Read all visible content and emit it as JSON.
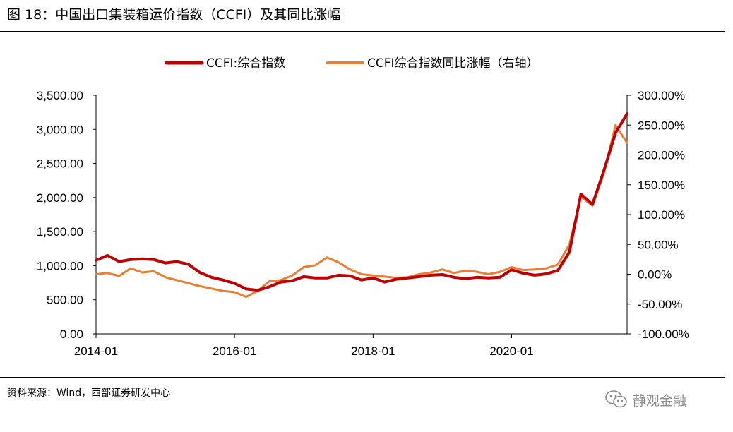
{
  "figure_title": "图 18：中国出口集装箱运价指数（CCFI）及其同比涨幅",
  "source_text": "资料来源：Wind，西部证券研发中心",
  "watermark_text": "静观金融",
  "watermark_icon": "wechat-icon",
  "colors": {
    "index": "#C00000",
    "yoy": "#ED7D31",
    "axis": "#000000",
    "watermark": "#8a8a8a"
  },
  "chart_data": {
    "type": "line",
    "legend_position": "top",
    "grid": false,
    "x_ticks": [
      "2014-01",
      "2016-01",
      "2018-01",
      "2020-01"
    ],
    "x_range": [
      "2014-01",
      "2021-09"
    ],
    "y_left": {
      "ylim": [
        0,
        3500
      ],
      "ticks": [
        "0.00",
        "500.00",
        "1,000.00",
        "1,500.00",
        "2,000.00",
        "2,500.00",
        "3,000.00",
        "3,500.00"
      ]
    },
    "y_right": {
      "ylim": [
        -100,
        300
      ],
      "ticks": [
        "-100.00%",
        "-50.00%",
        "0.00%",
        "50.00%",
        "100.00%",
        "150.00%",
        "200.00%",
        "250.00%",
        "300.00%"
      ]
    },
    "series": [
      {
        "name": "CCFI:综合指数",
        "axis": "left",
        "points": [
          [
            "2014-01",
            1080
          ],
          [
            "2014-03",
            1150
          ],
          [
            "2014-05",
            1060
          ],
          [
            "2014-07",
            1090
          ],
          [
            "2014-09",
            1100
          ],
          [
            "2014-11",
            1090
          ],
          [
            "2015-01",
            1040
          ],
          [
            "2015-03",
            1060
          ],
          [
            "2015-05",
            1020
          ],
          [
            "2015-07",
            900
          ],
          [
            "2015-09",
            830
          ],
          [
            "2015-11",
            790
          ],
          [
            "2016-01",
            740
          ],
          [
            "2016-03",
            660
          ],
          [
            "2016-05",
            640
          ],
          [
            "2016-07",
            690
          ],
          [
            "2016-09",
            760
          ],
          [
            "2016-11",
            780
          ],
          [
            "2017-01",
            840
          ],
          [
            "2017-03",
            820
          ],
          [
            "2017-05",
            820
          ],
          [
            "2017-07",
            860
          ],
          [
            "2017-09",
            850
          ],
          [
            "2017-11",
            790
          ],
          [
            "2018-01",
            820
          ],
          [
            "2018-03",
            760
          ],
          [
            "2018-05",
            800
          ],
          [
            "2018-07",
            820
          ],
          [
            "2018-09",
            840
          ],
          [
            "2018-11",
            860
          ],
          [
            "2019-01",
            870
          ],
          [
            "2019-03",
            830
          ],
          [
            "2019-05",
            810
          ],
          [
            "2019-07",
            830
          ],
          [
            "2019-09",
            820
          ],
          [
            "2019-11",
            830
          ],
          [
            "2020-01",
            940
          ],
          [
            "2020-03",
            890
          ],
          [
            "2020-05",
            860
          ],
          [
            "2020-07",
            880
          ],
          [
            "2020-09",
            930
          ],
          [
            "2020-11",
            1200
          ],
          [
            "2021-01",
            2050
          ],
          [
            "2021-03",
            1900
          ],
          [
            "2021-05",
            2400
          ],
          [
            "2021-07",
            2950
          ],
          [
            "2021-09",
            3230
          ]
        ]
      },
      {
        "name": "CCFI综合指数同比涨幅（右轴）",
        "axis": "right",
        "points": [
          [
            "2014-01",
            0
          ],
          [
            "2014-03",
            2
          ],
          [
            "2014-05",
            -3
          ],
          [
            "2014-07",
            10
          ],
          [
            "2014-09",
            3
          ],
          [
            "2014-11",
            5
          ],
          [
            "2015-01",
            -5
          ],
          [
            "2015-03",
            -10
          ],
          [
            "2015-05",
            -15
          ],
          [
            "2015-07",
            -20
          ],
          [
            "2015-09",
            -24
          ],
          [
            "2015-11",
            -28
          ],
          [
            "2016-01",
            -30
          ],
          [
            "2016-03",
            -38
          ],
          [
            "2016-05",
            -28
          ],
          [
            "2016-07",
            -12
          ],
          [
            "2016-09",
            -10
          ],
          [
            "2016-11",
            -2
          ],
          [
            "2017-01",
            12
          ],
          [
            "2017-03",
            15
          ],
          [
            "2017-05",
            28
          ],
          [
            "2017-07",
            20
          ],
          [
            "2017-09",
            8
          ],
          [
            "2017-11",
            0
          ],
          [
            "2018-01",
            -2
          ],
          [
            "2018-03",
            -4
          ],
          [
            "2018-05",
            -6
          ],
          [
            "2018-07",
            -5
          ],
          [
            "2018-09",
            0
          ],
          [
            "2018-11",
            3
          ],
          [
            "2019-01",
            8
          ],
          [
            "2019-03",
            2
          ],
          [
            "2019-05",
            6
          ],
          [
            "2019-07",
            4
          ],
          [
            "2019-09",
            0
          ],
          [
            "2019-11",
            4
          ],
          [
            "2020-01",
            12
          ],
          [
            "2020-03",
            7
          ],
          [
            "2020-05",
            8
          ],
          [
            "2020-07",
            10
          ],
          [
            "2020-09",
            16
          ],
          [
            "2020-11",
            50
          ],
          [
            "2021-01",
            130
          ],
          [
            "2021-03",
            115
          ],
          [
            "2021-05",
            170
          ],
          [
            "2021-07",
            250
          ],
          [
            "2021-09",
            220
          ]
        ]
      }
    ]
  }
}
